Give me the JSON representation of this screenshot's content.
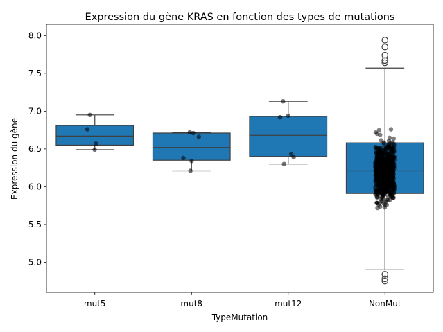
{
  "chart_data": {
    "type": "box",
    "title": "Expression du gène KRAS en fonction des types de mutations",
    "xlabel": "TypeMutation",
    "ylabel": "Expression du gène",
    "categories": [
      "mut5",
      "mut8",
      "mut12",
      "NonMut"
    ],
    "ylim": [
      4.6,
      8.15
    ],
    "yticks": [
      5.0,
      5.5,
      6.0,
      6.5,
      7.0,
      7.5,
      8.0
    ],
    "ytick_labels": [
      "5.0",
      "5.5",
      "6.0",
      "6.5",
      "7.0",
      "7.5",
      "8.0"
    ],
    "box_color": "#1f77b4",
    "point_color": "#000000",
    "grid": false,
    "boxes": [
      {
        "category": "mut5",
        "whisker_low": 6.49,
        "q1": 6.55,
        "median": 6.67,
        "q3": 6.81,
        "whisker_high": 6.95
      },
      {
        "category": "mut8",
        "whisker_low": 6.21,
        "q1": 6.35,
        "median": 6.52,
        "q3": 6.71,
        "whisker_high": 6.72
      },
      {
        "category": "mut12",
        "whisker_low": 6.3,
        "q1": 6.4,
        "median": 6.68,
        "q3": 6.93,
        "whisker_high": 7.13
      },
      {
        "category": "NonMut",
        "whisker_low": 4.9,
        "q1": 5.91,
        "median": 6.21,
        "q3": 6.58,
        "whisker_high": 7.57
      }
    ],
    "outliers": {
      "NonMut": [
        4.75,
        4.78,
        4.84,
        7.64,
        7.67,
        7.74,
        7.85,
        7.94
      ]
    },
    "points": [
      {
        "category": "mut5",
        "values": [
          6.49,
          6.57,
          6.76,
          6.95
        ]
      },
      {
        "category": "mut8",
        "values": [
          6.21,
          6.34,
          6.38,
          6.66,
          6.71,
          6.72
        ]
      },
      {
        "category": "mut12",
        "values": [
          6.3,
          6.39,
          6.43,
          6.92,
          6.94,
          7.13
        ]
      }
    ]
  }
}
